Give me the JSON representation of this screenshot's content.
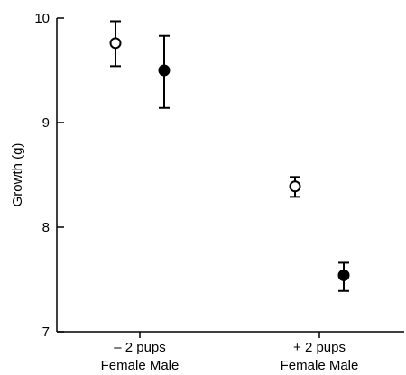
{
  "chart_data": {
    "type": "scatter",
    "ylabel": "Growth (g)",
    "ylim": [
      7,
      10
    ],
    "yticks": [
      7,
      8,
      9,
      10
    ],
    "grid": false,
    "groups": [
      {
        "label": "– 2 pups",
        "sublabel": "Female Male"
      },
      {
        "label": "+ 2 pups",
        "sublabel": "Female Male"
      }
    ],
    "points": [
      {
        "group": 0,
        "subgroup": "Female",
        "marker": "open",
        "y": 9.76,
        "err_low": 9.54,
        "err_high": 9.97
      },
      {
        "group": 0,
        "subgroup": "Male",
        "marker": "filled",
        "y": 9.5,
        "err_low": 9.14,
        "err_high": 9.83
      },
      {
        "group": 1,
        "subgroup": "Female",
        "marker": "open",
        "y": 8.39,
        "err_low": 8.29,
        "err_high": 8.48
      },
      {
        "group": 1,
        "subgroup": "Male",
        "marker": "filled",
        "y": 7.54,
        "err_low": 7.39,
        "err_high": 7.66
      }
    ]
  }
}
